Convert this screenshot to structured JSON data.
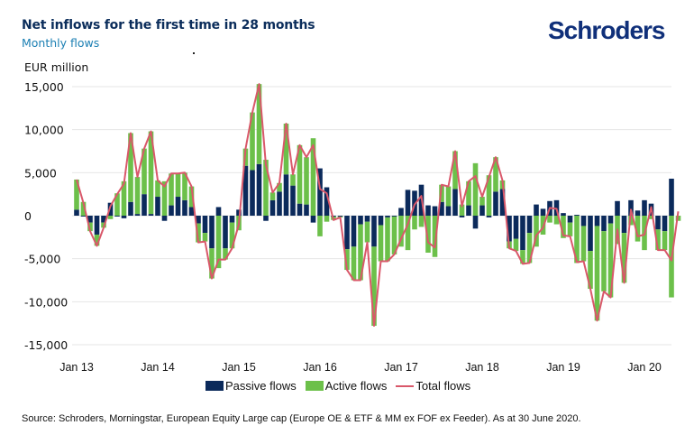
{
  "header": {
    "title": "Net inflows for the first time in 28 months",
    "subtitle": "Monthly flows",
    "brand": "Schroders"
  },
  "source": "Source: Schroders, Morningstar, European Equity Large cap (Europe OE & ETF & MM ex FOF ex Feeder). As at 30 June 2020.",
  "chart_data": {
    "type": "bar",
    "subtype": "stacked bar with line overlay",
    "title": "Net inflows for the first time in 28 months",
    "subtitle": "Monthly flows",
    "ylabel": "EUR million",
    "xlabel": "",
    "ylim": [
      -15000,
      15000
    ],
    "yticks": [
      15000,
      10000,
      5000,
      0,
      -5000,
      -10000,
      -15000
    ],
    "ytick_labels": [
      "15,000",
      "10,000",
      "5,000",
      "0",
      "-5,000",
      "-10,000",
      "-15,000"
    ],
    "xtick_labels": [
      "Jan 13",
      "Jan 14",
      "Jan 15",
      "Jan 16",
      "Jan 17",
      "Jan 18",
      "Jan 19",
      "Jan 20"
    ],
    "xtick_month_index": [
      0,
      12,
      24,
      36,
      48,
      60,
      72,
      84
    ],
    "grid": true,
    "legend_position": "bottom",
    "colors": {
      "passive": "#0b2a5b",
      "active": "#6cc04a",
      "total": "#d9586a",
      "grid": "#e6e6e6"
    },
    "months_start": "Jan 2013",
    "months_end": "Jun 2020",
    "series": [
      {
        "name": "Passive flows",
        "kind": "bar",
        "values": [
          700,
          -100,
          -800,
          -2200,
          -800,
          1500,
          -100,
          -300,
          1600,
          200,
          2500,
          200,
          2200,
          -600,
          1200,
          2200,
          1800,
          1000,
          -900,
          -2000,
          -3800,
          1000,
          -3800,
          -800,
          700,
          5800,
          5300,
          6000,
          -600,
          1800,
          2800,
          4800,
          3500,
          1400,
          1300,
          -800,
          5500,
          3300,
          -100,
          -100,
          -3900,
          -3600,
          -1000,
          -700,
          -3600,
          -1100,
          -200,
          -100,
          900,
          3000,
          2900,
          3600,
          1200,
          1100,
          1600,
          1100,
          3100,
          -200,
          1200,
          -1500,
          1200,
          -200,
          2800,
          3100,
          -3000,
          -2700,
          -4000,
          -2000,
          1300,
          800,
          1700,
          1800,
          300,
          -800,
          100,
          -1200,
          -4100,
          -1200,
          -1800,
          -900,
          1700,
          -2000,
          1800,
          600,
          1800,
          1400,
          -1600,
          -1800,
          4300,
          0
        ],
        "values_note": "last month passive approx -200"
      },
      {
        "name": "Active flows",
        "kind": "bar",
        "values": [
          3500,
          1600,
          -1000,
          -1300,
          -600,
          -400,
          2600,
          4000,
          8000,
          4300,
          5300,
          9600,
          1900,
          4000,
          3700,
          2700,
          3200,
          2400,
          -2200,
          -1000,
          -3500,
          -6100,
          -1300,
          -3000,
          -1700,
          2000,
          6700,
          9300,
          6500,
          900,
          1000,
          5900,
          1300,
          6800,
          5500,
          9000,
          -2400,
          -700,
          -400,
          -100,
          -2400,
          -3900,
          -6500,
          -2400,
          -9200,
          -4200,
          -5100,
          -4400,
          -3600,
          -4000,
          -1600,
          -1300,
          -4300,
          -4800,
          2000,
          2300,
          4400,
          1300,
          2800,
          6100,
          1000,
          4700,
          4000,
          1000,
          -800,
          -1400,
          -1600,
          -3500,
          -3600,
          -2200,
          -800,
          -1000,
          -2600,
          -1600,
          -5500,
          -4100,
          -4400,
          -11000,
          -7000,
          -8600,
          -3300,
          -5800,
          -1100,
          -3000,
          -4000,
          -400,
          -2400,
          -2200,
          -9500,
          -600
        ],
        "values_note": "values are approximate, read from bar lengths"
      },
      {
        "name": "Total flows",
        "kind": "line",
        "values": [
          4200,
          1500,
          -1800,
          -3500,
          -1400,
          1100,
          2500,
          3700,
          9600,
          4500,
          7800,
          9800,
          4100,
          3400,
          4900,
          4900,
          5000,
          3400,
          -3100,
          -3000,
          -7300,
          -5100,
          -5100,
          -3800,
          -1000,
          7800,
          12000,
          15300,
          5900,
          2700,
          3800,
          10700,
          4800,
          8200,
          6800,
          8200,
          3100,
          2600,
          -500,
          -200,
          -6300,
          -7500,
          -7500,
          -3100,
          -12800,
          -5300,
          -5300,
          -4500,
          -2700,
          -1000,
          1300,
          2300,
          -3100,
          -3700,
          3600,
          3400,
          7500,
          1100,
          4000,
          4600,
          2200,
          4500,
          6800,
          4100,
          -3800,
          -4100,
          -5600,
          -5500,
          -2300,
          -1400,
          900,
          800,
          -2300,
          -2400,
          -5400,
          -5300,
          -8500,
          -12200,
          -8800,
          -9500,
          -1600,
          -7800,
          700,
          -2400,
          -2200,
          1000,
          -4000,
          -4000,
          -5200,
          500
        ]
      }
    ]
  },
  "legend": [
    {
      "label": "Passive flows",
      "kind": "bar"
    },
    {
      "label": "Active flows",
      "kind": "bar"
    },
    {
      "label": "Total flows",
      "kind": "line"
    }
  ]
}
